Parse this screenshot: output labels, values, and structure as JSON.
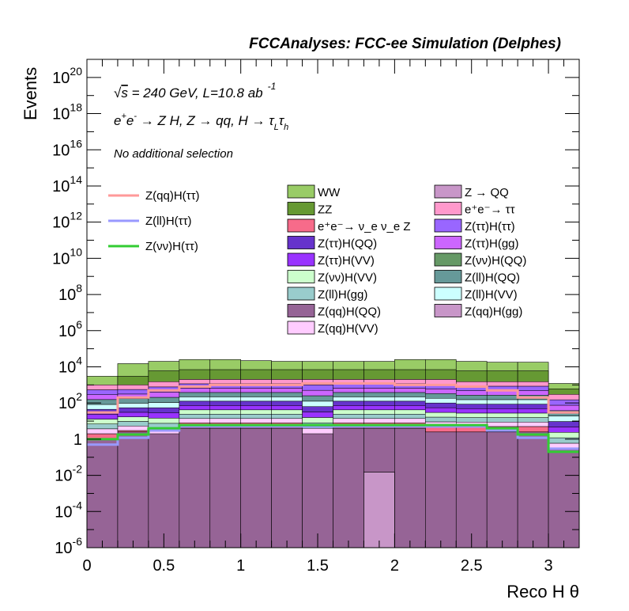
{
  "header": "FCCAnalyses: FCC-ee Simulation (Delphes)",
  "annotations": {
    "line1": "√s = 240 GeV, L=10.8 ab⁻¹",
    "line2": "e⁺e⁻ → Z H, Z → qq, H → τ_L τ_h",
    "line3": "No additional selection"
  },
  "chart_data": {
    "type": "area",
    "subtype": "stacked histogram with signal overlay lines",
    "title": "FCCAnalyses: FCC-ee Simulation (Delphes)",
    "xlabel": "Reco H θ",
    "ylabel": "Events",
    "xlim": [
      0,
      3.2
    ],
    "ylim": [
      1e-06,
      1e+21
    ],
    "yscale": "log",
    "bin_edges": [
      0,
      0.2,
      0.4,
      0.6,
      0.8,
      1.0,
      1.2,
      1.4,
      1.6,
      1.8,
      2.0,
      2.2,
      2.4,
      2.6,
      2.8,
      3.0,
      3.2
    ],
    "x_ticks": [
      "0",
      "0.5",
      "1",
      "1.5",
      "2",
      "2.5",
      "3"
    ],
    "y_ticks": [
      "10^-6",
      "10^-4",
      "10^-2",
      "1",
      "10^2",
      "10^4",
      "10^6",
      "10^8",
      "10^10",
      "10^12",
      "10^14",
      "10^16",
      "10^18",
      "10^20"
    ],
    "stack_totals": [
      3000,
      15000,
      20000,
      25000,
      25000,
      22000,
      20000,
      20000,
      20000,
      20000,
      25000,
      25000,
      20000,
      18000,
      18000,
      1200
    ],
    "stack_layer_tops": [
      {
        "name": "Z(qq)H(QQ)",
        "color": "#966496",
        "values": [
          1,
          2.5,
          2.5,
          4,
          4,
          4,
          4,
          4,
          4,
          4,
          4,
          2.5,
          2.5,
          2.5,
          2.5,
          1
        ]
      },
      {
        "name": "Z(νν)H(QQ)",
        "color": "#669966",
        "values": [
          1,
          1,
          0.0005,
          4,
          4,
          4,
          4,
          0.0005,
          4,
          4,
          4,
          2.5,
          2.5,
          0.0001,
          2.5,
          0.01
        ]
      },
      {
        "name": "e⁺e⁻→ ν_e ν_e Z",
        "color": "#f76b8a",
        "values": [
          2,
          3,
          2,
          8,
          8,
          8,
          8,
          2,
          8,
          8,
          8,
          5,
          5,
          5,
          5,
          0.3
        ]
      },
      {
        "name": "Z(qq)H(gg)",
        "color": "#c896c8",
        "values": [
          1000,
          1000,
          1500,
          2000,
          2000,
          2000,
          2000,
          2000,
          2000,
          2000,
          2000,
          2000,
          1500,
          1500,
          1500,
          300
        ]
      },
      {
        "name": "ZZ",
        "color": "#669933",
        "values": [
          1000,
          3000,
          6000,
          7000,
          7000,
          7000,
          7000,
          7000,
          7000,
          7000,
          7000,
          7000,
          6000,
          6000,
          6000,
          600
        ]
      },
      {
        "name": "WW",
        "color": "#99cc66",
        "values": [
          3000,
          15000,
          20000,
          25000,
          25000,
          22000,
          20000,
          20000,
          20000,
          20000,
          25000,
          25000,
          20000,
          18000,
          18000,
          1200
        ]
      }
    ],
    "overlay_lines": [
      {
        "name": "Z(qq)H(ττ)",
        "color": "#ff9999",
        "values": [
          30,
          200,
          500,
          800,
          1000,
          1000,
          1000,
          1200,
          1200,
          1200,
          1000,
          1000,
          800,
          500,
          200,
          30
        ]
      },
      {
        "name": "Z(ll)H(ττ)",
        "color": "#9999ff",
        "values": [
          0.5,
          1.2,
          3,
          5,
          5,
          5,
          5,
          5,
          5,
          5,
          5,
          5,
          5,
          3,
          1.2,
          0.3
        ]
      },
      {
        "name": "Z(νν)H(ττ)",
        "color": "#33cc33",
        "values": [
          1,
          1.8,
          4,
          6,
          6,
          6,
          6,
          6,
          6,
          6,
          6,
          6,
          6,
          4,
          1.8,
          0.2
        ]
      }
    ],
    "special_bin": {
      "name": "Z → QQ",
      "color": "#c896c8",
      "x_range": [
        1.8,
        2.0
      ],
      "value": 0.015
    },
    "legend": {
      "lines": [
        "Z(qq)H(ττ)",
        "Z(ll)H(ττ)",
        "Z(νν)H(ττ)"
      ],
      "column_a": [
        {
          "label": "WW",
          "color": "#99cc66"
        },
        {
          "label": "ZZ",
          "color": "#669933"
        },
        {
          "label": "e⁺e⁻→ ν_e ν_e Z",
          "color": "#f76b8a"
        },
        {
          "label": "Z(ττ)H(QQ)",
          "color": "#6633cc"
        },
        {
          "label": "Z(ττ)H(VV)",
          "color": "#9933ff"
        },
        {
          "label": "Z(νν)H(VV)",
          "color": "#ccffcc"
        },
        {
          "label": "Z(ll)H(gg)",
          "color": "#99cccc"
        },
        {
          "label": "Z(qq)H(QQ)",
          "color": "#966496"
        },
        {
          "label": "Z(qq)H(VV)",
          "color": "#ffccff"
        }
      ],
      "column_b": [
        {
          "label": "Z → QQ",
          "color": "#c896c8"
        },
        {
          "label": "e⁺e⁻→ ττ",
          "color": "#ff99cc"
        },
        {
          "label": "Z(ττ)H(ττ)",
          "color": "#9966ff"
        },
        {
          "label": "Z(ττ)H(gg)",
          "color": "#cc66ff"
        },
        {
          "label": "Z(νν)H(QQ)",
          "color": "#669966"
        },
        {
          "label": "Z(ll)H(QQ)",
          "color": "#669999"
        },
        {
          "label": "Z(ll)H(VV)",
          "color": "#ccffff"
        },
        {
          "label": "Z(qq)H(gg)",
          "color": "#c896c8"
        }
      ]
    }
  }
}
